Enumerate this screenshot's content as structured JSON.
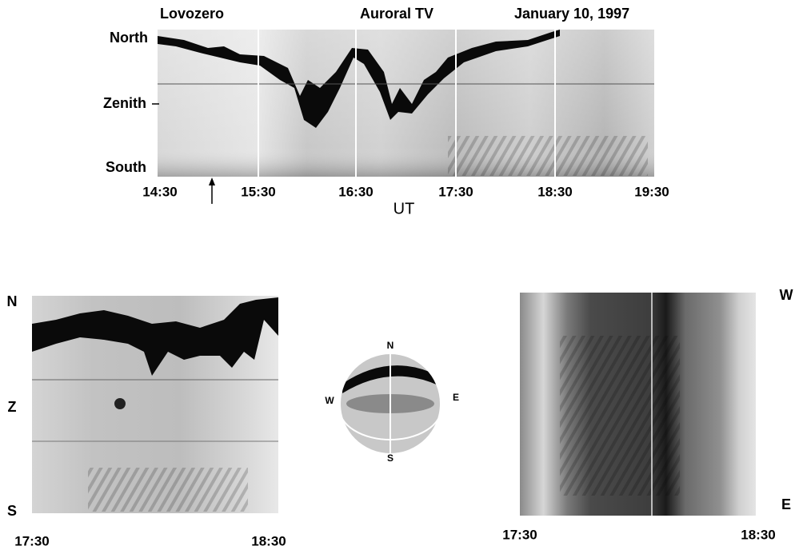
{
  "top_panel": {
    "station": "Lovozero",
    "title": "Auroral TV",
    "date": "January 10, 1997",
    "y_labels": [
      "North",
      "Zenith",
      "South"
    ],
    "time_labels": [
      "14:30",
      "15:30",
      "16:30",
      "17:30",
      "18:30",
      "19:30"
    ],
    "axis_label": "UT"
  },
  "bottom_left": {
    "y_labels": [
      "N",
      "Z",
      "S"
    ],
    "time_labels": [
      "17:30",
      "18:30"
    ]
  },
  "all_sky": {
    "labels": [
      "N",
      "W",
      "E",
      "S"
    ]
  },
  "bottom_right": {
    "y_labels": [
      "W",
      "E"
    ],
    "time_labels": [
      "17:30",
      "18:30"
    ]
  }
}
